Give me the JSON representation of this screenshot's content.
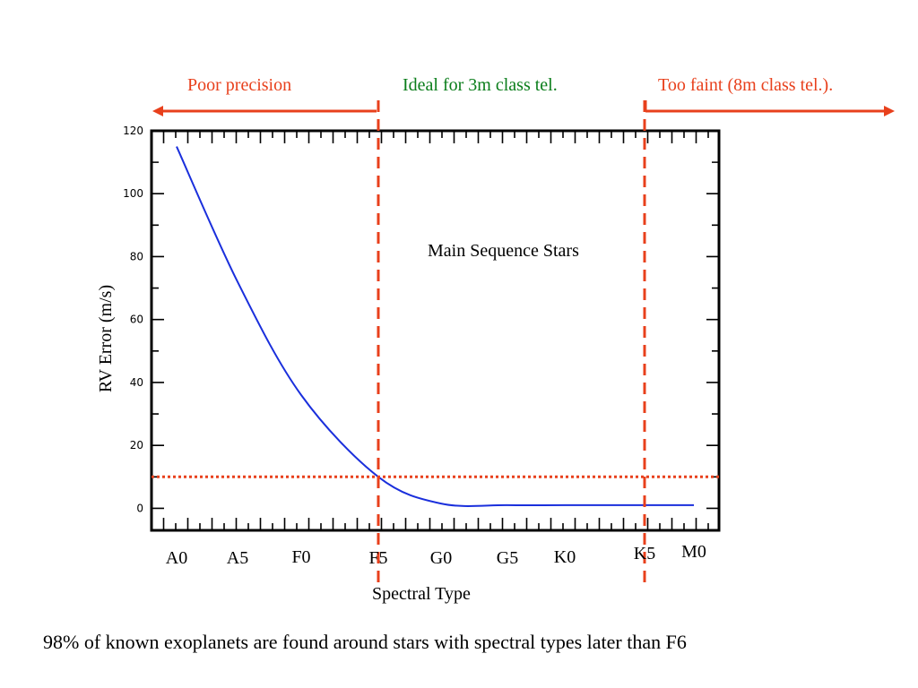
{
  "chart_data": {
    "type": "line",
    "title": "",
    "xlabel": "Spectral Type",
    "ylabel": "RV Error (m/s)",
    "ylim": [
      -7,
      120
    ],
    "yticks": [
      0,
      20,
      40,
      60,
      80,
      100,
      120
    ],
    "grid": false,
    "categories": [
      "A0",
      "A5",
      "F0",
      "F5",
      "G0",
      "G5",
      "K0",
      "K5",
      "M0"
    ],
    "series": [
      {
        "color": "#1a2fdc",
        "x": [
          "A0",
          "A5",
          "F0",
          "F5",
          "G0",
          "G5",
          "K0",
          "K5",
          "M0"
        ],
        "y": [
          115,
          72,
          36,
          10,
          1.5,
          1,
          1,
          1,
          1
        ]
      }
    ],
    "reference_lines": [
      {
        "orientation": "horizontal",
        "y": 10,
        "style": "dotted",
        "color": "#e8401c"
      },
      {
        "orientation": "vertical",
        "x": "F5",
        "style": "dashed",
        "color": "#e8401c"
      },
      {
        "orientation": "vertical",
        "x": "K5",
        "style": "dashed",
        "color": "#e8401c"
      }
    ],
    "annotations": [
      "Main Sequence Stars"
    ],
    "regions": [
      {
        "label": "Poor precision",
        "color": "#e8401c"
      },
      {
        "label": "Ideal for 3m class tel.",
        "color": "#0a7d1a"
      },
      {
        "label": "Too faint (8m class tel.).",
        "color": "#e8401c"
      }
    ]
  },
  "caption": "98% of known exoplanets are found around stars with spectral types later than F6",
  "colors": {
    "accent": "#e8401c",
    "ideal": "#0a7d1a",
    "curve": "#1a2fdc",
    "axis": "#000000"
  }
}
